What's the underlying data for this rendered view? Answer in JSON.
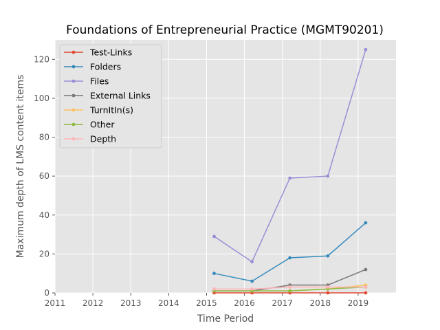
{
  "chart_data": {
    "type": "line",
    "title": "Foundations of Entrepreneurial Practice (MGMT90201)",
    "xlabel": "Time Period",
    "ylabel": "Maximum depth of LMS content items",
    "xlim": [
      2011,
      2020
    ],
    "ylim": [
      0,
      130
    ],
    "xticks": [
      "2011",
      "2012",
      "2013",
      "2014",
      "2015",
      "2016",
      "2017",
      "2018",
      "2019"
    ],
    "yticks": [
      "0",
      "20",
      "40",
      "60",
      "80",
      "100",
      "120"
    ],
    "grid": true,
    "legend_position": "top-left",
    "x": [
      2015.2,
      2016.2,
      2017.2,
      2018.2,
      2019.2
    ],
    "series": [
      {
        "name": "Test-Links",
        "color": "#E24A33",
        "values": [
          0,
          0,
          0,
          0,
          0
        ]
      },
      {
        "name": "Folders",
        "color": "#348ABD",
        "values": [
          10,
          6,
          18,
          19,
          36
        ]
      },
      {
        "name": "Files",
        "color": "#988ED5",
        "values": [
          29,
          16,
          59,
          60,
          125
        ]
      },
      {
        "name": "External Links",
        "color": "#777777",
        "values": [
          1,
          1,
          4,
          4,
          12
        ]
      },
      {
        "name": "TurnItIn(s)",
        "color": "#FBC15E",
        "values": [
          1,
          1,
          1,
          2,
          4
        ]
      },
      {
        "name": "Other",
        "color": "#8EBA42",
        "values": [
          1,
          1,
          1,
          2,
          3
        ]
      },
      {
        "name": "Depth",
        "color": "#FFB5B8",
        "values": [
          2,
          2,
          3,
          3,
          3
        ]
      }
    ]
  }
}
